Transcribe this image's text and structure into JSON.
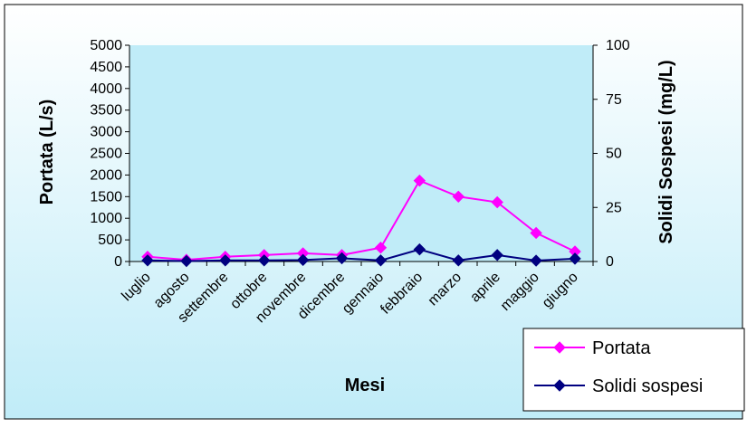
{
  "chart_data": {
    "type": "line",
    "title": "",
    "xlabel": "Mesi",
    "ylabel": "Portata (L/s)",
    "y2label": "Solidi Sospesi (mg/L)",
    "categories": [
      "luglio",
      "agosto",
      "settembre",
      "ottobre",
      "novembre",
      "dicembre",
      "gennaio",
      "febbraio",
      "marzo",
      "aprile",
      "maggio",
      "giugno"
    ],
    "ylim": [
      0,
      5000
    ],
    "yticks": [
      "0",
      "500",
      "1000",
      "1500",
      "2000",
      "2500",
      "3000",
      "3500",
      "4000",
      "4500",
      "5000"
    ],
    "y2lim": [
      0,
      100
    ],
    "y2ticks": [
      "0",
      "25",
      "50",
      "75",
      "100"
    ],
    "series": [
      {
        "name": "Portata",
        "axis": "left",
        "color": "#ff00ff",
        "values": [
          110,
          40,
          110,
          150,
          190,
          150,
          320,
          1870,
          1500,
          1370,
          660,
          230
        ]
      },
      {
        "name": "Solidi sospesi",
        "axis": "right",
        "color": "#000080",
        "values": [
          0.5,
          0.2,
          0.5,
          0.5,
          0.7,
          1.5,
          0.5,
          5.6,
          0.5,
          3.0,
          0.4,
          1.3
        ]
      }
    ],
    "grid": false,
    "legend": "bottom-right",
    "colors": {
      "plot_bg": "#c0ecf8",
      "frame": "#000000"
    }
  }
}
